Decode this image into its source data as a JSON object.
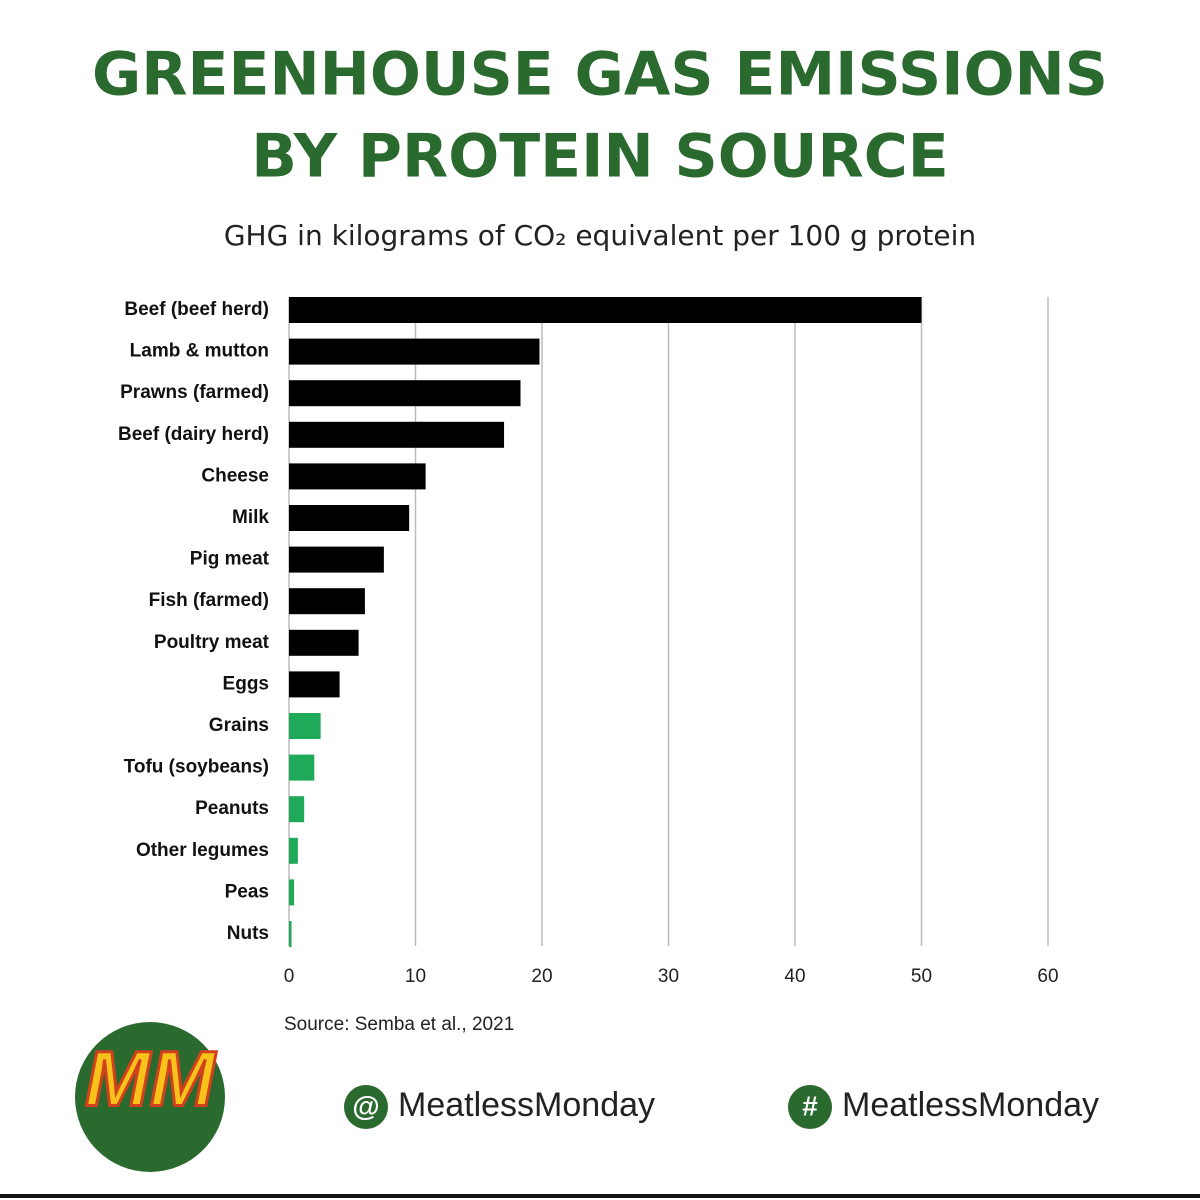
{
  "chart_data": {
    "type": "bar",
    "orientation": "horizontal",
    "title": [
      "GREENHOUSE GAS EMISSIONS",
      "BY PROTEIN SOURCE"
    ],
    "subtitle": "GHG in kilograms of CO₂ equivalent per 100 g protein",
    "categories": [
      "Beef (beef herd)",
      "Lamb & mutton",
      "Prawns (farmed)",
      "Beef (dairy herd)",
      "Cheese",
      "Milk",
      "Pig meat",
      "Fish (farmed)",
      "Poultry meat",
      "Eggs",
      "Grains",
      "Tofu (soybeans)",
      "Peanuts",
      "Other legumes",
      "Peas",
      "Nuts"
    ],
    "values": [
      50,
      19.8,
      18.3,
      17,
      10.8,
      9.5,
      7.5,
      6,
      5.5,
      4,
      2.5,
      2,
      1.2,
      0.7,
      0.4,
      0.2
    ],
    "colors": [
      "#000000",
      "#000000",
      "#000000",
      "#000000",
      "#000000",
      "#000000",
      "#000000",
      "#000000",
      "#000000",
      "#000000",
      "#1faa59",
      "#1faa59",
      "#1faa59",
      "#1faa59",
      "#1faa59",
      "#1faa59"
    ],
    "xlim": [
      0,
      60
    ],
    "xticks": [
      0,
      10,
      20,
      30,
      40,
      50,
      60
    ],
    "grid": true,
    "source": "Source: Semba et al., 2021"
  },
  "footer": {
    "logo": "MM",
    "handles": [
      {
        "icon": "@",
        "text": "MeatlessMonday"
      },
      {
        "icon": "#",
        "text": "MeatlessMonday"
      }
    ]
  }
}
